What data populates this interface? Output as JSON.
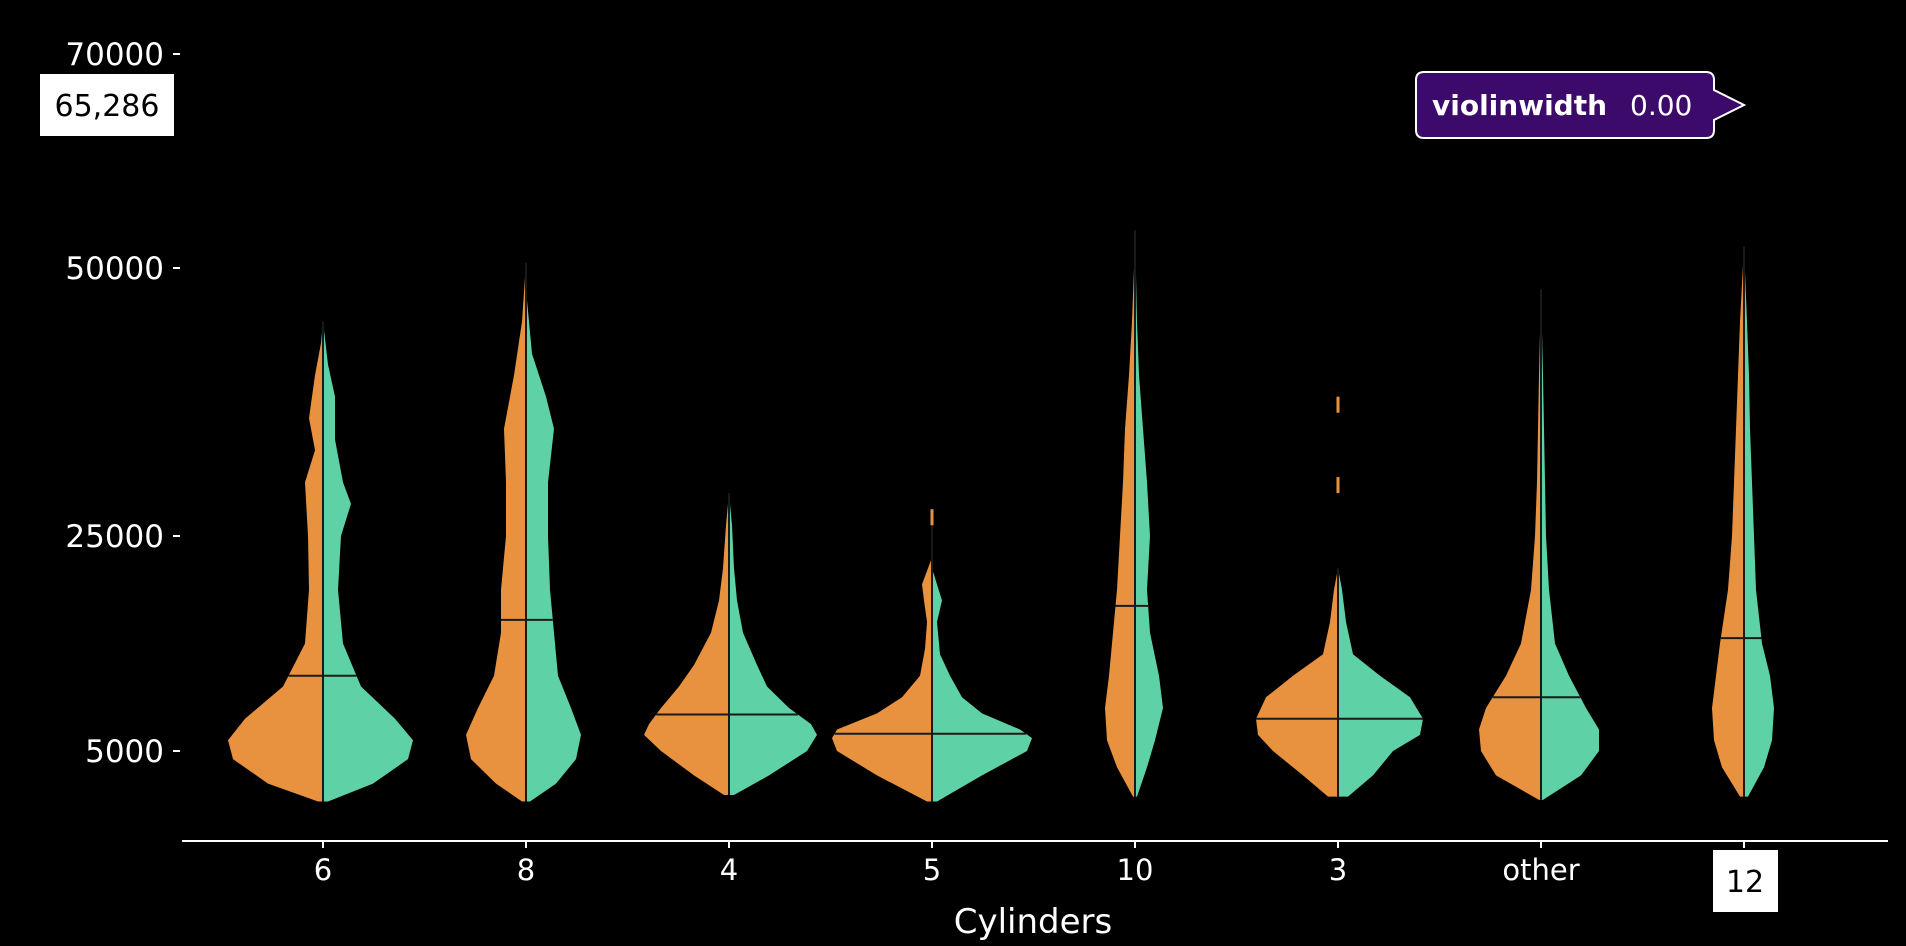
{
  "chart_data": {
    "type": "violin",
    "xlabel": "Cylinders",
    "ylabel": "",
    "categories": [
      "6",
      "8",
      "4",
      "5",
      "10",
      "3",
      "other",
      "12"
    ],
    "y_ticks": [
      5000,
      25000,
      50000,
      70000
    ],
    "y_tick_labels": [
      "5000",
      "25000",
      "50000",
      "70000"
    ],
    "ylim": [
      1500,
      70000
    ],
    "grid": false,
    "legend": "none",
    "colors": {
      "left": "#e8923f",
      "right": "#5fd1a6",
      "median_line": "#1a1a1a",
      "axis": "#ffffff"
    },
    "violins": [
      {
        "category": "6",
        "min": 1900,
        "max": 45000,
        "median": 12000,
        "left": [
          [
            1900,
            0.05
          ],
          [
            3000,
            0.55
          ],
          [
            4500,
            0.9
          ],
          [
            6000,
            0.95
          ],
          [
            8000,
            0.78
          ],
          [
            11000,
            0.4
          ],
          [
            15000,
            0.18
          ],
          [
            20000,
            0.14
          ],
          [
            25000,
            0.15
          ],
          [
            30000,
            0.18
          ],
          [
            33000,
            0.08
          ],
          [
            36000,
            0.14
          ],
          [
            40000,
            0.08
          ],
          [
            43000,
            0.02
          ],
          [
            45000,
            0.0
          ]
        ],
        "right": [
          [
            1900,
            0.05
          ],
          [
            3000,
            0.5
          ],
          [
            4500,
            0.85
          ],
          [
            6000,
            0.9
          ],
          [
            8000,
            0.72
          ],
          [
            11000,
            0.38
          ],
          [
            15000,
            0.2
          ],
          [
            20000,
            0.15
          ],
          [
            25000,
            0.18
          ],
          [
            28000,
            0.28
          ],
          [
            30000,
            0.2
          ],
          [
            34000,
            0.12
          ],
          [
            38000,
            0.12
          ],
          [
            41000,
            0.05
          ],
          [
            45000,
            0.0
          ]
        ]
      },
      {
        "category": "8",
        "min": 1900,
        "max": 50500,
        "median": 17200,
        "left": [
          [
            1900,
            0.04
          ],
          [
            3000,
            0.3
          ],
          [
            4500,
            0.55
          ],
          [
            6500,
            0.6
          ],
          [
            9000,
            0.48
          ],
          [
            12000,
            0.32
          ],
          [
            16000,
            0.25
          ],
          [
            20000,
            0.25
          ],
          [
            25000,
            0.2
          ],
          [
            30000,
            0.2
          ],
          [
            35000,
            0.22
          ],
          [
            40000,
            0.12
          ],
          [
            45000,
            0.04
          ],
          [
            50500,
            0.0
          ]
        ],
        "right": [
          [
            1900,
            0.04
          ],
          [
            3000,
            0.3
          ],
          [
            4500,
            0.5
          ],
          [
            6500,
            0.55
          ],
          [
            9000,
            0.45
          ],
          [
            12000,
            0.32
          ],
          [
            16000,
            0.28
          ],
          [
            20000,
            0.24
          ],
          [
            25000,
            0.22
          ],
          [
            30000,
            0.22
          ],
          [
            35000,
            0.28
          ],
          [
            38000,
            0.2
          ],
          [
            42000,
            0.06
          ],
          [
            47000,
            0.01
          ],
          [
            50500,
            0.0
          ]
        ]
      },
      {
        "category": "4",
        "min": 2300,
        "max": 29000,
        "median": 8400,
        "left": [
          [
            2300,
            0.05
          ],
          [
            3500,
            0.35
          ],
          [
            5000,
            0.68
          ],
          [
            6500,
            0.85
          ],
          [
            7500,
            0.8
          ],
          [
            9000,
            0.68
          ],
          [
            11000,
            0.5
          ],
          [
            13000,
            0.35
          ],
          [
            16000,
            0.18
          ],
          [
            19000,
            0.1
          ],
          [
            22000,
            0.06
          ],
          [
            26000,
            0.03
          ],
          [
            29000,
            0.0
          ]
        ],
        "right": [
          [
            2300,
            0.05
          ],
          [
            3500,
            0.4
          ],
          [
            5000,
            0.78
          ],
          [
            6500,
            0.88
          ],
          [
            7500,
            0.82
          ],
          [
            9000,
            0.6
          ],
          [
            11000,
            0.38
          ],
          [
            13000,
            0.28
          ],
          [
            16000,
            0.14
          ],
          [
            19000,
            0.08
          ],
          [
            22000,
            0.05
          ],
          [
            26000,
            0.03
          ],
          [
            29000,
            0.0
          ]
        ]
      },
      {
        "category": "5",
        "min": 1900,
        "max": 27000,
        "median": 6600,
        "left": [
          [
            1900,
            0.05
          ],
          [
            3500,
            0.55
          ],
          [
            5000,
            0.95
          ],
          [
            6200,
            1.0
          ],
          [
            7000,
            0.95
          ],
          [
            8500,
            0.55
          ],
          [
            10000,
            0.3
          ],
          [
            12000,
            0.12
          ],
          [
            14500,
            0.07
          ],
          [
            17000,
            0.05
          ],
          [
            19000,
            0.08
          ],
          [
            20500,
            0.1
          ],
          [
            22000,
            0.04
          ],
          [
            23000,
            0.0
          ]
        ],
        "right": [
          [
            1900,
            0.05
          ],
          [
            3500,
            0.5
          ],
          [
            5000,
            0.95
          ],
          [
            6200,
            1.0
          ],
          [
            7000,
            0.88
          ],
          [
            8500,
            0.5
          ],
          [
            10000,
            0.3
          ],
          [
            12000,
            0.18
          ],
          [
            14000,
            0.08
          ],
          [
            17000,
            0.05
          ],
          [
            19000,
            0.1
          ],
          [
            20500,
            0.05
          ],
          [
            22000,
            0.0
          ]
        ]
      },
      {
        "category": "10",
        "min": 2200,
        "max": 53500,
        "median": 18500,
        "left": [
          [
            2200,
            0.02
          ],
          [
            4000,
            0.18
          ],
          [
            6000,
            0.28
          ],
          [
            9000,
            0.3
          ],
          [
            12000,
            0.26
          ],
          [
            16000,
            0.22
          ],
          [
            20000,
            0.18
          ],
          [
            25000,
            0.15
          ],
          [
            30000,
            0.12
          ],
          [
            35000,
            0.1
          ],
          [
            40000,
            0.06
          ],
          [
            45000,
            0.03
          ],
          [
            50000,
            0.01
          ],
          [
            53500,
            0.0
          ]
        ],
        "right": [
          [
            2200,
            0.02
          ],
          [
            4000,
            0.12
          ],
          [
            6000,
            0.2
          ],
          [
            9000,
            0.28
          ],
          [
            12000,
            0.24
          ],
          [
            16000,
            0.15
          ],
          [
            20000,
            0.12
          ],
          [
            25000,
            0.15
          ],
          [
            30000,
            0.12
          ],
          [
            35000,
            0.08
          ],
          [
            40000,
            0.04
          ],
          [
            45000,
            0.02
          ],
          [
            53500,
            0.0
          ]
        ]
      },
      {
        "category": "3",
        "min": 2200,
        "max": 22000,
        "median": 8000,
        "left": [
          [
            2200,
            0.1
          ],
          [
            3500,
            0.35
          ],
          [
            5000,
            0.65
          ],
          [
            6500,
            0.8
          ],
          [
            8000,
            0.82
          ],
          [
            10000,
            0.72
          ],
          [
            12000,
            0.45
          ],
          [
            14000,
            0.15
          ],
          [
            17000,
            0.08
          ],
          [
            20000,
            0.04
          ],
          [
            22000,
            0.0
          ]
        ],
        "right": [
          [
            2200,
            0.1
          ],
          [
            3500,
            0.35
          ],
          [
            5000,
            0.55
          ],
          [
            6500,
            0.82
          ],
          [
            8000,
            0.85
          ],
          [
            10000,
            0.72
          ],
          [
            12000,
            0.42
          ],
          [
            14000,
            0.15
          ],
          [
            17000,
            0.08
          ],
          [
            20000,
            0.04
          ],
          [
            22000,
            0.0
          ]
        ]
      },
      {
        "category": "other",
        "min": 2000,
        "max": 48000,
        "median": 10000,
        "left": [
          [
            2000,
            0.02
          ],
          [
            3500,
            0.45
          ],
          [
            5000,
            0.6
          ],
          [
            7000,
            0.62
          ],
          [
            9000,
            0.55
          ],
          [
            12000,
            0.35
          ],
          [
            15000,
            0.2
          ],
          [
            20000,
            0.1
          ],
          [
            25000,
            0.06
          ],
          [
            30000,
            0.04
          ],
          [
            35000,
            0.03
          ],
          [
            40000,
            0.02
          ],
          [
            48000,
            0.0
          ]
        ],
        "right": [
          [
            2000,
            0.02
          ],
          [
            3500,
            0.4
          ],
          [
            5000,
            0.58
          ],
          [
            7000,
            0.58
          ],
          [
            9000,
            0.45
          ],
          [
            12000,
            0.28
          ],
          [
            15000,
            0.14
          ],
          [
            20000,
            0.08
          ],
          [
            25000,
            0.05
          ],
          [
            30000,
            0.04
          ],
          [
            35000,
            0.03
          ],
          [
            40000,
            0.02
          ],
          [
            48000,
            0.0
          ]
        ]
      },
      {
        "category": "12",
        "min": 2200,
        "max": 52000,
        "median": 15500,
        "left": [
          [
            2200,
            0.04
          ],
          [
            4000,
            0.22
          ],
          [
            6000,
            0.3
          ],
          [
            9000,
            0.32
          ],
          [
            12000,
            0.28
          ],
          [
            15000,
            0.24
          ],
          [
            20000,
            0.16
          ],
          [
            25000,
            0.12
          ],
          [
            30000,
            0.1
          ],
          [
            35000,
            0.08
          ],
          [
            40000,
            0.06
          ],
          [
            45000,
            0.04
          ],
          [
            52000,
            0.0
          ]
        ],
        "right": [
          [
            2200,
            0.04
          ],
          [
            4000,
            0.2
          ],
          [
            6000,
            0.28
          ],
          [
            9000,
            0.3
          ],
          [
            12000,
            0.26
          ],
          [
            15000,
            0.18
          ],
          [
            20000,
            0.12
          ],
          [
            25000,
            0.1
          ],
          [
            30000,
            0.08
          ],
          [
            35000,
            0.06
          ],
          [
            40000,
            0.05
          ],
          [
            45000,
            0.03
          ],
          [
            52000,
            0.0
          ]
        ]
      }
    ],
    "extra_marks": [
      {
        "category": "5",
        "type": "speck",
        "y_from": 26000,
        "y_to": 27500
      },
      {
        "category": "3",
        "type": "speck",
        "y_from": 36500,
        "y_to": 38000
      },
      {
        "category": "3",
        "type": "speck",
        "y_from": 29000,
        "y_to": 30500
      }
    ]
  },
  "hover": {
    "y_value_label": "65,286",
    "x_value_label": "12",
    "tooltip_name": "violinwidth",
    "tooltip_value": "0.00",
    "tooltip_color": "#3b0a6b"
  }
}
